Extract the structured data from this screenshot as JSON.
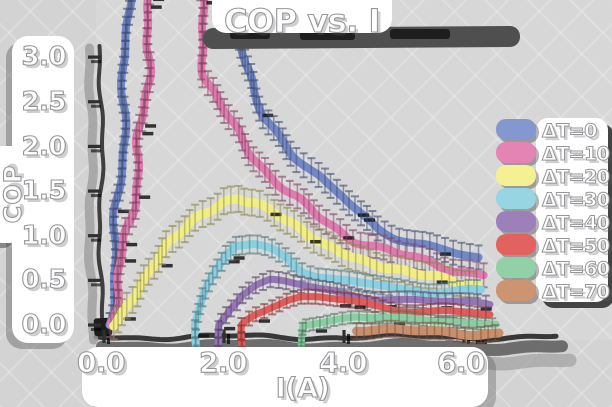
{
  "title": "COP vs. I",
  "axes": {
    "xlabel": "I(A)",
    "ylabel": "COP",
    "x_ticks": [
      "0.0",
      "2.0",
      "4.0",
      "6.0"
    ],
    "y_ticks": [
      "3.0",
      "2.5",
      "2.0",
      "1.5",
      "1.0",
      "0.5",
      "0.0"
    ]
  },
  "legend": {
    "items": [
      {
        "label": "ΔT=0",
        "color": "#8498cf"
      },
      {
        "label": "ΔT=10",
        "color": "#e384b4"
      },
      {
        "label": "ΔT=20",
        "color": "#f5f192"
      },
      {
        "label": "ΔT=30",
        "color": "#97d5e3"
      },
      {
        "label": "ΔT=40",
        "color": "#9d7fba"
      },
      {
        "label": "ΔT=50",
        "color": "#e26260"
      },
      {
        "label": "ΔT=60",
        "color": "#92d0a8"
      },
      {
        "label": "ΔT=70",
        "color": "#cd9472"
      }
    ]
  },
  "colors": {
    "background": "#d2d3d2",
    "text_fill": "#ffffff",
    "text_outline": "#96969a",
    "axis": "#3a3a3a",
    "shadow": "#4f4f4f"
  },
  "chart_data": {
    "type": "line",
    "title": "COP vs. I",
    "xlabel": "I(A)",
    "ylabel": "COP",
    "xlim": [
      0,
      6.6
    ],
    "ylim": [
      0,
      3.4
    ],
    "x_tick_values": [
      0,
      2,
      4,
      6
    ],
    "y_tick_values": [
      0,
      0.5,
      1,
      1.5,
      2,
      2.5,
      3
    ],
    "legend_position": "right",
    "style": "xkcd-sketch lines with dense error bars, gray background, white outlined text",
    "notes": "COP of a thermoelectric cooler vs current for ΔT=0..70; ΔT=0 and ΔT=10 curves exceed the top of the axes (clipped) between their rise and fall branches.",
    "series": [
      {
        "name": "ΔT=0",
        "color": "#7287c5",
        "width": 8,
        "ebar": 12,
        "amp": 3,
        "seed": 11,
        "points": [
          [
            0.1,
            0
          ],
          [
            0.2,
            0.8
          ],
          [
            0.3,
            1.8
          ],
          [
            0.36,
            2.6
          ],
          [
            0.42,
            3.9
          ],
          [
            2.15,
            3.9
          ],
          [
            2.33,
            2.9
          ],
          [
            2.5,
            2.6
          ],
          [
            2.7,
            2.35
          ],
          [
            2.95,
            2.15
          ],
          [
            3.2,
            1.9
          ],
          [
            3.45,
            1.72
          ],
          [
            3.7,
            1.55
          ],
          [
            4.0,
            1.42
          ],
          [
            4.3,
            1.25
          ],
          [
            4.6,
            1.1
          ],
          [
            4.9,
            1.0
          ],
          [
            5.2,
            0.92
          ],
          [
            5.55,
            0.84
          ],
          [
            5.9,
            0.78
          ],
          [
            6.25,
            0.73
          ]
        ]
      },
      {
        "name": "ΔT=10",
        "color": "#e07bad",
        "width": 8,
        "ebar": 12,
        "amp": 3,
        "seed": 22,
        "points": [
          [
            0.12,
            0
          ],
          [
            0.32,
            0.7
          ],
          [
            0.55,
            1.6
          ],
          [
            0.72,
            2.7
          ],
          [
            0.82,
            3.9
          ],
          [
            1.58,
            3.9
          ],
          [
            1.72,
            2.8
          ],
          [
            1.9,
            2.5
          ],
          [
            2.1,
            2.28
          ],
          [
            2.3,
            2.08
          ],
          [
            2.55,
            1.88
          ],
          [
            2.8,
            1.68
          ],
          [
            3.05,
            1.5
          ],
          [
            3.3,
            1.35
          ],
          [
            3.6,
            1.2
          ],
          [
            3.9,
            1.08
          ],
          [
            4.2,
            0.97
          ],
          [
            4.55,
            0.88
          ],
          [
            4.9,
            0.79
          ],
          [
            5.3,
            0.71
          ],
          [
            5.7,
            0.65
          ],
          [
            6.05,
            0.61
          ],
          [
            6.35,
            0.58
          ]
        ]
      },
      {
        "name": "ΔT=20",
        "color": "#f2ee86",
        "width": 9,
        "ebar": 13,
        "amp": 2.5,
        "seed": 33,
        "points": [
          [
            0.15,
            0
          ],
          [
            0.6,
            0.45
          ],
          [
            1.1,
            0.88
          ],
          [
            1.6,
            1.22
          ],
          [
            2.0,
            1.4
          ],
          [
            2.25,
            1.44
          ],
          [
            2.55,
            1.38
          ],
          [
            2.85,
            1.25
          ],
          [
            3.15,
            1.1
          ],
          [
            3.45,
            0.97
          ],
          [
            3.75,
            0.88
          ],
          [
            4.05,
            0.82
          ],
          [
            4.4,
            0.73
          ],
          [
            4.75,
            0.65
          ],
          [
            5.1,
            0.58
          ],
          [
            5.5,
            0.52
          ],
          [
            5.9,
            0.47
          ],
          [
            6.25,
            0.44
          ]
        ]
      },
      {
        "name": "ΔT=30",
        "color": "#8bd0e0",
        "width": 8,
        "ebar": 9,
        "amp": 2.5,
        "seed": 44,
        "points": [
          [
            1.55,
            -0.33
          ],
          [
            1.55,
            0
          ],
          [
            1.7,
            0.35
          ],
          [
            1.85,
            0.6
          ],
          [
            2.0,
            0.8
          ],
          [
            2.2,
            0.9
          ],
          [
            2.5,
            0.88
          ],
          [
            2.8,
            0.82
          ],
          [
            3.1,
            0.74
          ],
          [
            3.35,
            0.62
          ],
          [
            3.6,
            0.55
          ],
          [
            3.9,
            0.5
          ],
          [
            4.3,
            0.46
          ],
          [
            4.7,
            0.43
          ],
          [
            5.1,
            0.4
          ],
          [
            5.5,
            0.38
          ],
          [
            5.95,
            0.37
          ],
          [
            6.3,
            0.36
          ]
        ]
      },
      {
        "name": "ΔT=40",
        "color": "#9576b4",
        "width": 7,
        "ebar": 8,
        "amp": 2,
        "seed": 55,
        "points": [
          [
            1.92,
            -0.33
          ],
          [
            1.92,
            0
          ],
          [
            2.1,
            0.2
          ],
          [
            2.3,
            0.35
          ],
          [
            2.55,
            0.44
          ],
          [
            2.8,
            0.49
          ],
          [
            3.05,
            0.47
          ],
          [
            3.3,
            0.44
          ],
          [
            3.6,
            0.4
          ],
          [
            3.9,
            0.37
          ],
          [
            4.2,
            0.34
          ],
          [
            4.6,
            0.31
          ],
          [
            5.0,
            0.28
          ],
          [
            5.4,
            0.26
          ],
          [
            5.9,
            0.25
          ],
          [
            6.45,
            0.23
          ]
        ]
      },
      {
        "name": "ΔT=50",
        "color": "#df5c5b",
        "width": 7,
        "ebar": 7,
        "amp": 2,
        "seed": 66,
        "points": [
          [
            2.35,
            -0.25
          ],
          [
            2.35,
            0
          ],
          [
            2.55,
            0.12
          ],
          [
            2.8,
            0.22
          ],
          [
            3.05,
            0.29
          ],
          [
            3.3,
            0.32
          ],
          [
            3.6,
            0.31
          ],
          [
            3.9,
            0.28
          ],
          [
            4.2,
            0.25
          ],
          [
            4.6,
            0.21
          ],
          [
            5.0,
            0.18
          ],
          [
            5.4,
            0.15
          ],
          [
            5.9,
            0.13
          ],
          [
            6.45,
            0.12
          ]
        ]
      },
      {
        "name": "ΔT=60",
        "color": "#8acda2",
        "width": 7,
        "ebar": 6,
        "amp": 1.5,
        "seed": 77,
        "points": [
          [
            3.32,
            -0.3
          ],
          [
            3.32,
            0
          ],
          [
            3.55,
            0.04
          ],
          [
            3.85,
            0.07
          ],
          [
            4.2,
            0.09
          ],
          [
            4.6,
            0.08
          ],
          [
            5.0,
            0.06
          ],
          [
            5.4,
            0.05
          ],
          [
            5.9,
            0.04
          ],
          [
            6.3,
            0.03
          ],
          [
            6.55,
            0.03
          ]
        ]
      },
      {
        "name": "ΔT=70",
        "color": "#c98f6d",
        "width": 9,
        "ebar": 8,
        "amp": 2,
        "seed": 88,
        "points": [
          [
            4.23,
            -0.04
          ],
          [
            4.6,
            -0.06
          ],
          [
            5.0,
            -0.07
          ],
          [
            5.4,
            -0.08
          ],
          [
            5.9,
            -0.08
          ],
          [
            6.3,
            -0.09
          ],
          [
            6.6,
            -0.09
          ]
        ]
      }
    ]
  }
}
